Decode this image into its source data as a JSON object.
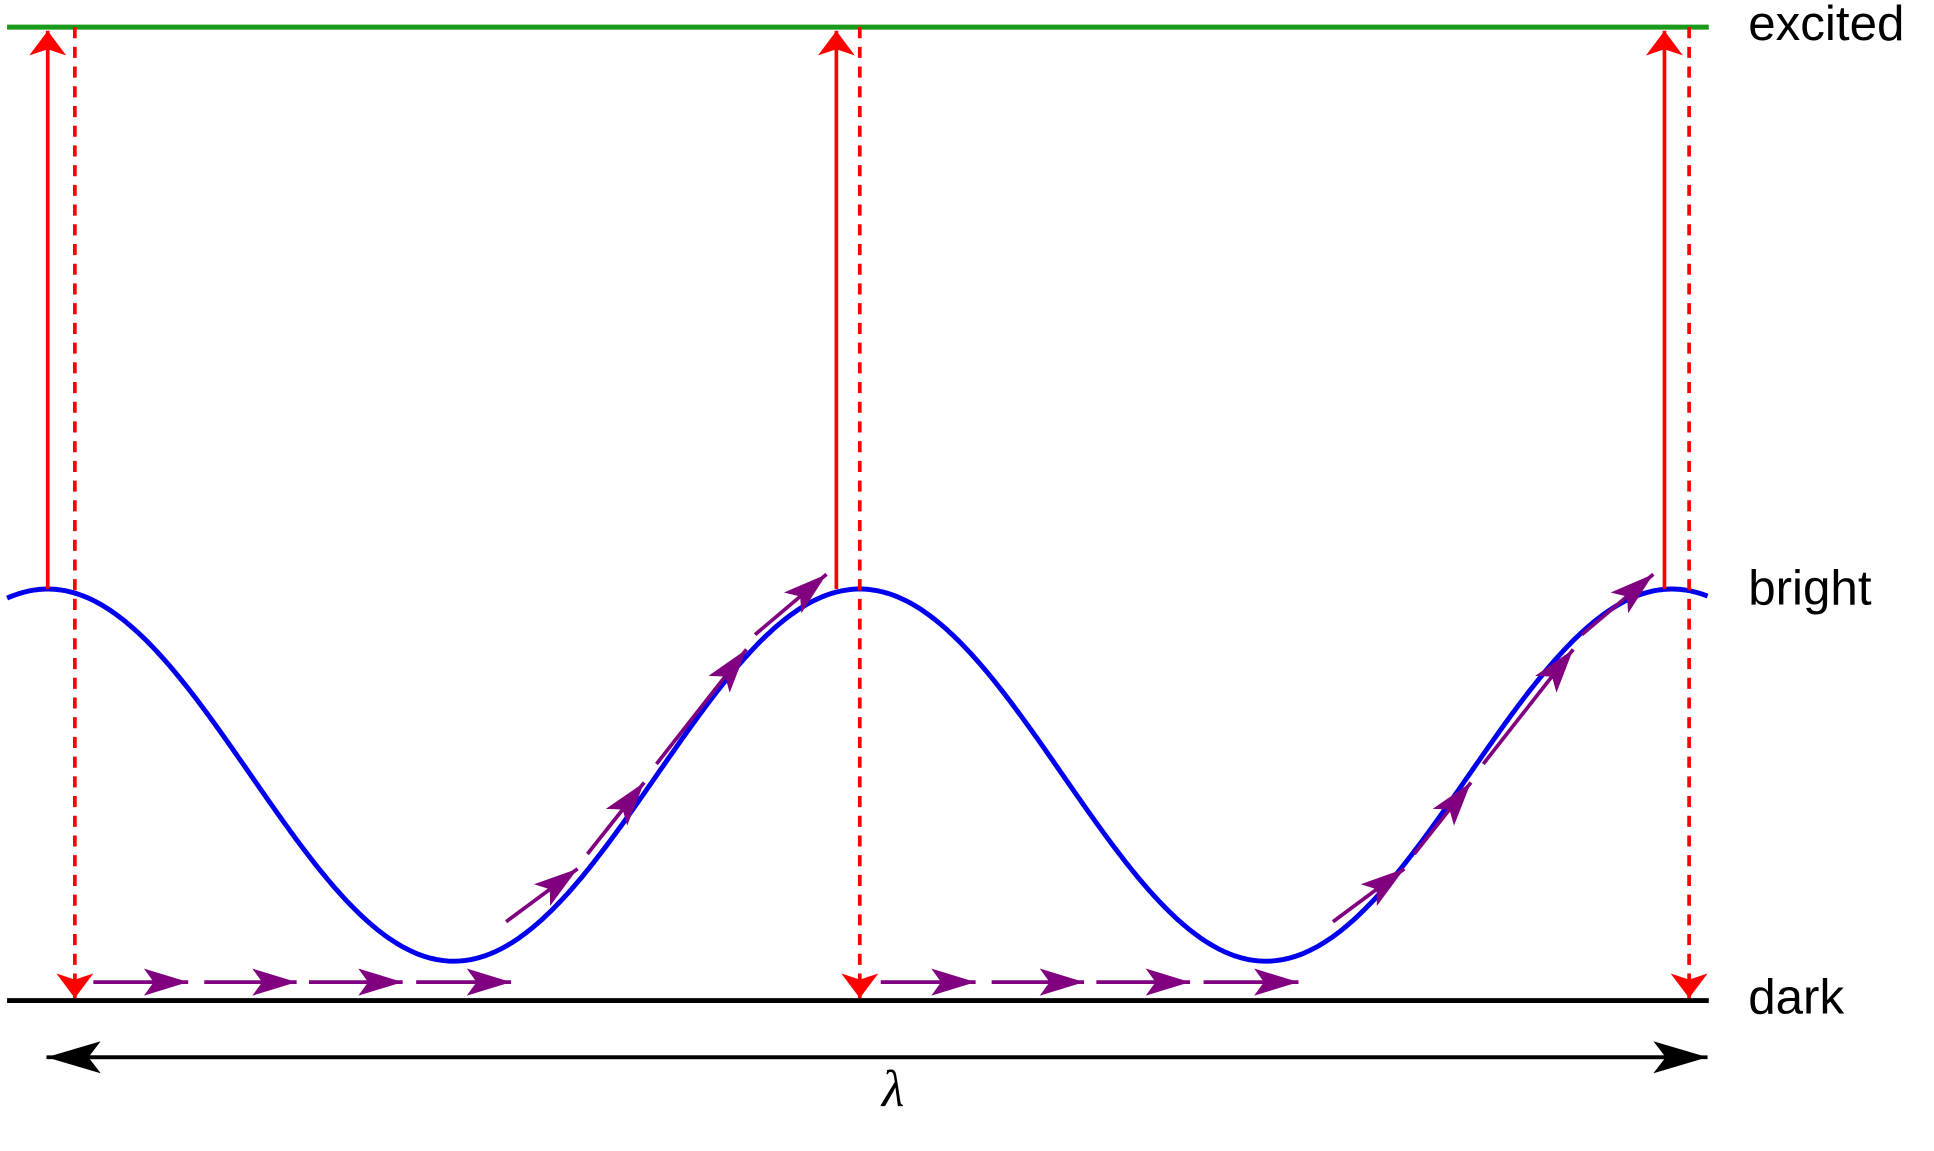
{
  "levels": {
    "excited": "excited",
    "bright": "bright",
    "dark": "dark"
  },
  "wavelength": "λ"
}
